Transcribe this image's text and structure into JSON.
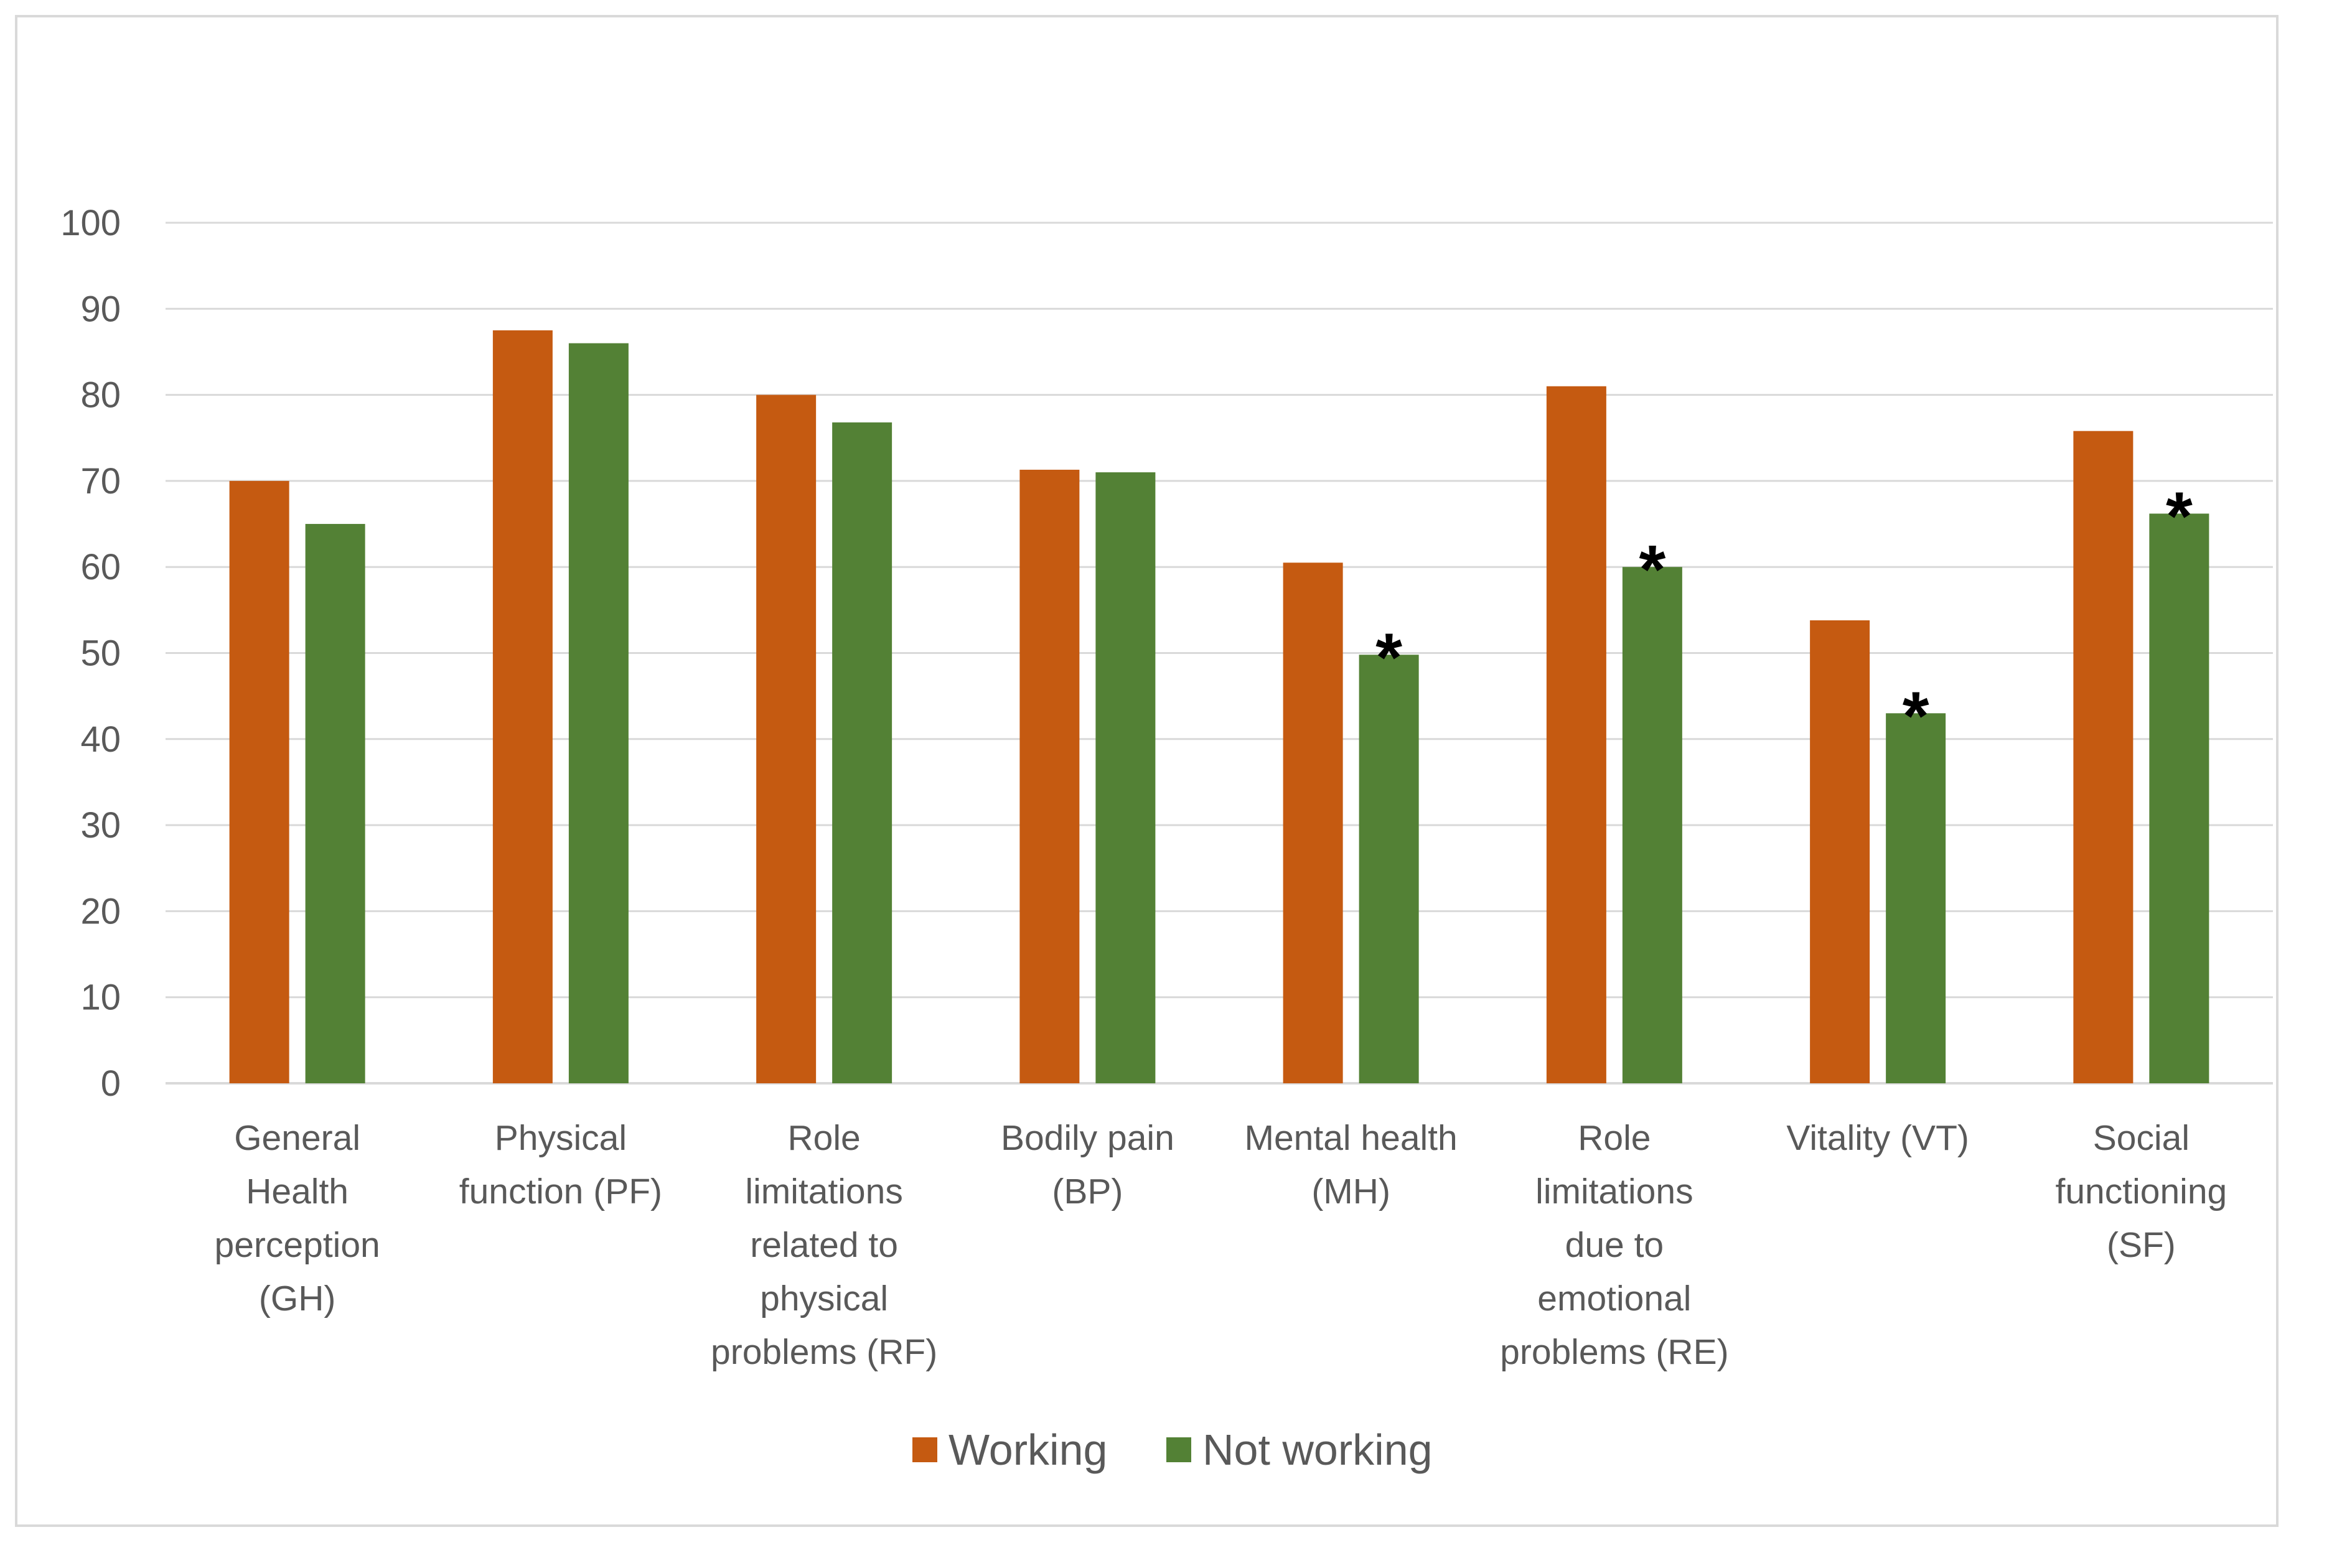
{
  "chart_data": {
    "type": "bar",
    "title": "",
    "xlabel": "",
    "ylabel": "",
    "ylim": [
      0,
      100
    ],
    "yticks": [
      0,
      10,
      20,
      30,
      40,
      50,
      60,
      70,
      80,
      90,
      100
    ],
    "grid": true,
    "legend_position": "bottom-center",
    "categories": [
      [
        "General",
        "Health",
        "perception",
        "(GH)"
      ],
      [
        "Physical",
        "function (PF)"
      ],
      [
        "Role",
        "limitations",
        "related to",
        "physical",
        "problems (RF)"
      ],
      [
        "Bodily pain",
        "(BP)"
      ],
      [
        "Mental health",
        "(MH)"
      ],
      [
        "Role",
        "limitations",
        "due to",
        "emotional",
        "problems (RE)"
      ],
      [
        "Vitality (VT)"
      ],
      [
        "Social",
        "functioning",
        "(SF)"
      ]
    ],
    "series": [
      {
        "name": "Working",
        "color": "#c55a11",
        "values": [
          70,
          87.5,
          80,
          71.3,
          60.5,
          81,
          53.8,
          75.8
        ]
      },
      {
        "name": "Not working",
        "color": "#538135",
        "values": [
          65,
          86,
          76.8,
          71,
          49.8,
          60,
          43,
          66.2
        ]
      }
    ],
    "annotations": [
      {
        "text": "*",
        "series": "Not working",
        "category_index": 4
      },
      {
        "text": "*",
        "series": "Not working",
        "category_index": 5
      },
      {
        "text": "*",
        "series": "Not working",
        "category_index": 6
      },
      {
        "text": "*",
        "series": "Not working",
        "category_index": 7
      }
    ],
    "colors": {
      "gridline": "#d9d9d9",
      "axis": "#d9d9d9",
      "text": "#595959"
    }
  }
}
